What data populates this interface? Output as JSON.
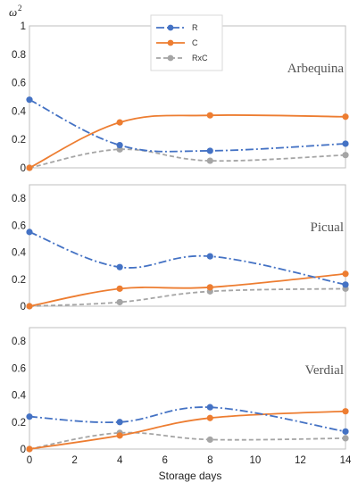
{
  "chart_data": {
    "type": "line",
    "ylabel": "ω",
    "ylabel_sup": "2",
    "xlabel": "Storage days",
    "x_ticks": [
      0,
      2,
      4,
      6,
      8,
      10,
      12,
      14
    ],
    "xlim": [
      0,
      14
    ],
    "legend": {
      "placement": "top-center",
      "entries": [
        {
          "name": "R",
          "color": "#4472C4",
          "dash": "dashdot"
        },
        {
          "name": "C",
          "color": "#ED7D31",
          "dash": "solid"
        },
        {
          "name": "RxC",
          "color": "#A5A5A5",
          "dash": "dashed"
        }
      ]
    },
    "panels": [
      {
        "name": "Arbequina",
        "ylim": [
          0,
          1
        ],
        "y_ticks": [
          "0",
          "0.2",
          "0.4",
          "0.6",
          "0.8",
          "1"
        ],
        "x": [
          0,
          4,
          8,
          14
        ],
        "series": [
          {
            "name": "R",
            "values": [
              0.48,
              0.16,
              0.12,
              0.17
            ]
          },
          {
            "name": "C",
            "values": [
              0.0,
              0.32,
              0.37,
              0.36
            ]
          },
          {
            "name": "RxC",
            "values": [
              0.0,
              0.13,
              0.05,
              0.09
            ]
          }
        ]
      },
      {
        "name": "Picual",
        "ylim": [
          0,
          0.9
        ],
        "y_ticks": [
          "0",
          "0.2",
          "0.4",
          "0.6",
          "0.8"
        ],
        "x": [
          0,
          4,
          8,
          14
        ],
        "series": [
          {
            "name": "R",
            "values": [
              0.55,
              0.29,
              0.37,
              0.16
            ]
          },
          {
            "name": "C",
            "values": [
              0.0,
              0.13,
              0.14,
              0.24
            ]
          },
          {
            "name": "RxC",
            "values": [
              0.0,
              0.03,
              0.11,
              0.13
            ]
          }
        ]
      },
      {
        "name": "Verdial",
        "ylim": [
          0,
          0.9
        ],
        "y_ticks": [
          "0",
          "0.2",
          "0.4",
          "0.6",
          "0.8"
        ],
        "x": [
          0,
          4,
          8,
          14
        ],
        "series": [
          {
            "name": "R",
            "values": [
              0.24,
              0.2,
              0.31,
              0.13
            ]
          },
          {
            "name": "C",
            "values": [
              0.0,
              0.1,
              0.23,
              0.28
            ]
          },
          {
            "name": "RxC",
            "values": [
              0.0,
              0.12,
              0.07,
              0.08
            ]
          }
        ]
      }
    ]
  }
}
